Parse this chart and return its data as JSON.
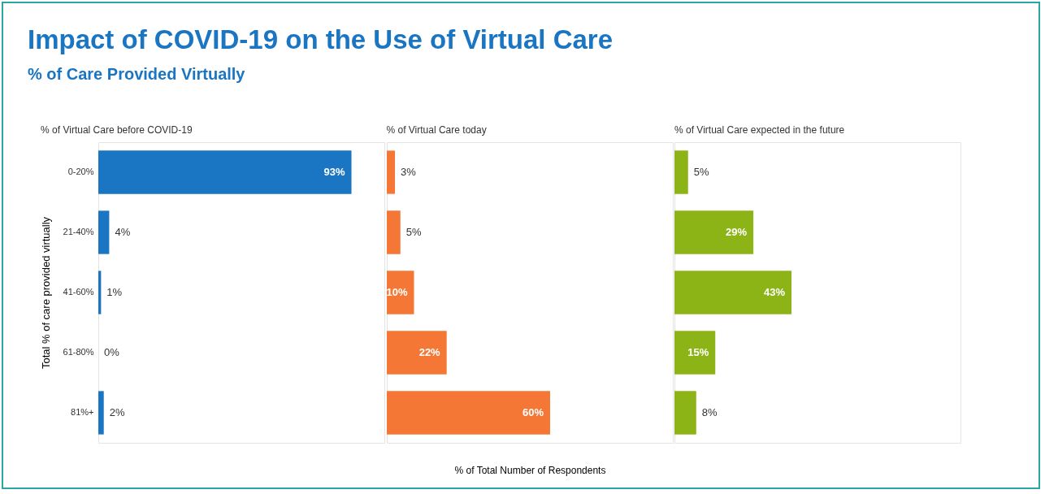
{
  "chart_data": [
    {
      "type": "bar",
      "orientation": "horizontal",
      "title": "% of Virtual Care before COVID-19",
      "ylabel": "Total % of care provided virtually",
      "annotations": [
        "Impact of COVID-19 on the Use of Virtual Care",
        "% of Care Provided Virtually"
      ],
      "categories": [
        "0-20%",
        "21-40%",
        "41-60%",
        "61-80%",
        "81%+"
      ],
      "values": [
        93,
        4,
        1,
        0,
        2
      ],
      "value_labels": [
        "93%",
        "4%",
        "1%",
        "0%",
        "2%"
      ],
      "color": "#1a75c2",
      "tick_labels": "y"
    },
    {
      "type": "bar",
      "orientation": "horizontal",
      "title": "% of Virtual Care today",
      "xlabel": "% of Total Number of Respondents",
      "categories": [
        "0-20%",
        "21-40%",
        "41-60%",
        "61-80%",
        "81%+"
      ],
      "values": [
        3,
        5,
        10,
        22,
        60
      ],
      "value_labels": [
        "3%",
        "5%",
        "10%",
        "22%",
        "60%"
      ],
      "color": "#f47735",
      "tick_labels": false
    },
    {
      "type": "bar",
      "orientation": "horizontal",
      "title": "% of Virtual Care expected in the future",
      "categories": [
        "0-20%",
        "21-40%",
        "41-60%",
        "61-80%",
        "81%+"
      ],
      "values": [
        5,
        29,
        43,
        15,
        8
      ],
      "value_labels": [
        "5%",
        "29%",
        "43%",
        "15%",
        "8%"
      ],
      "color": "#8cb417",
      "tick_labels": false
    }
  ]
}
